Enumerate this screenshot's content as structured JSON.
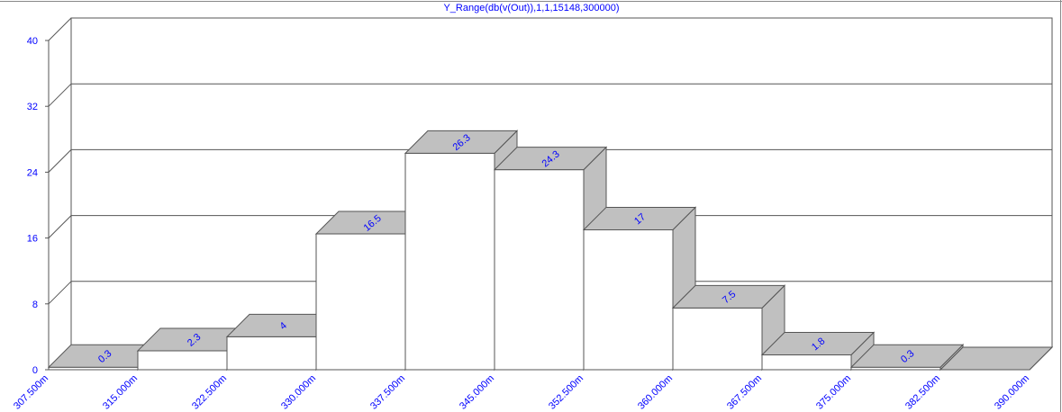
{
  "chart_data": {
    "type": "histogram",
    "title": "Y_Range(db(v(Out)),1,1,15148,300000)",
    "bins": [
      0.3075,
      0.315,
      0.3225,
      0.33,
      0.3375,
      0.345,
      0.3525,
      0.36,
      0.3675,
      0.375,
      0.3825,
      0.39
    ],
    "values": [
      0.3,
      2.3,
      4,
      16.5,
      26.3,
      24.3,
      17,
      7.5,
      1.8,
      0.3,
      0
    ],
    "value_labels": [
      "0.3",
      "2.3",
      "4",
      "16.5",
      "26.3",
      "24.3",
      "17",
      "7.5",
      "1.8",
      "0.3",
      null
    ],
    "xlim": [
      0.3075,
      0.39
    ],
    "xticks": [
      {
        "value": 0.3075,
        "label": "307.500m"
      },
      {
        "value": 0.315,
        "label": "315.000m"
      },
      {
        "value": 0.3225,
        "label": "322.500m"
      },
      {
        "value": 0.33,
        "label": "330.000m"
      },
      {
        "value": 0.3375,
        "label": "337.500m"
      },
      {
        "value": 0.345,
        "label": "345.000m"
      },
      {
        "value": 0.3525,
        "label": "352.500m"
      },
      {
        "value": 0.36,
        "label": "360.000m"
      },
      {
        "value": 0.3675,
        "label": "367.500m"
      },
      {
        "value": 0.375,
        "label": "375.000m"
      },
      {
        "value": 0.3825,
        "label": "382.500m"
      },
      {
        "value": 0.39,
        "label": "390.000m"
      }
    ],
    "ylim": [
      0,
      40
    ],
    "yticks": [
      0,
      8,
      16,
      24,
      32,
      40
    ],
    "grid": true,
    "color": "#c0c0c0",
    "label_color": "#0000ff"
  }
}
